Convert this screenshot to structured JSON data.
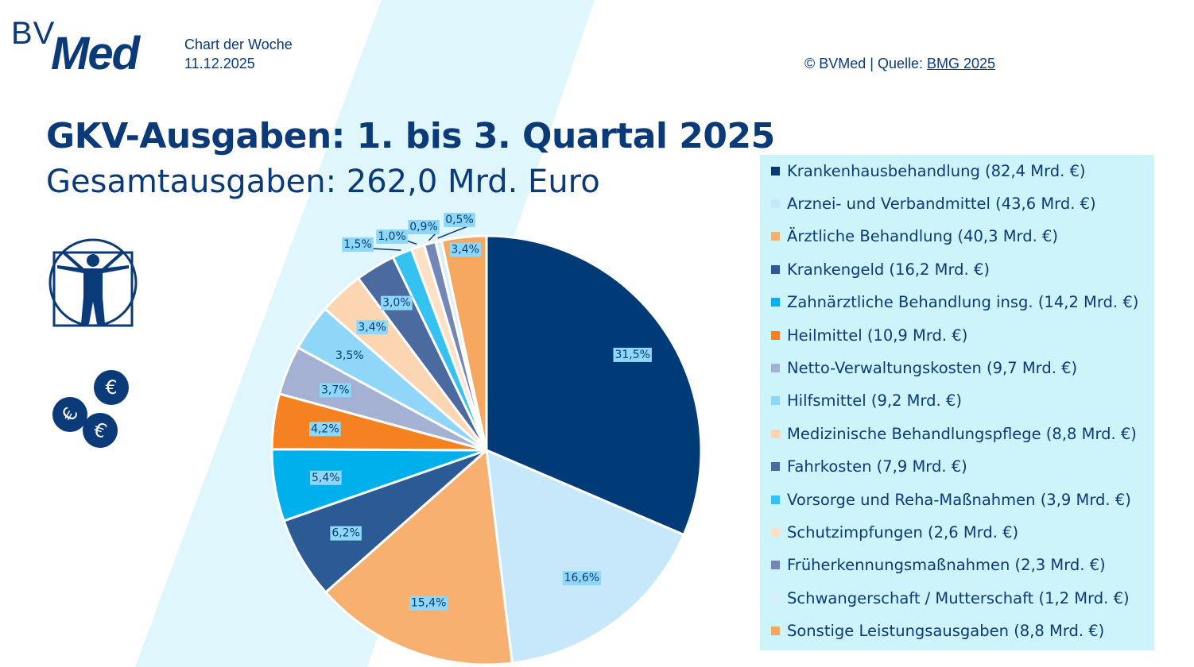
{
  "header": {
    "logo_text": "BVMed",
    "weekly_label": "Chart der Woche",
    "date": "11.12.2025",
    "copyright": "© BVMed | Quelle: ",
    "source_link": "BMG 2025"
  },
  "colors": {
    "navy": "#0b3a78",
    "stripe": "#dff6fc",
    "legend_bg": "#cdf3fb",
    "label_bg": "#8dd8f8"
  },
  "icons": [
    "vitruvian-man-icon",
    "euro-coins-icon"
  ],
  "chart_data": {
    "type": "pie",
    "title": "GKV-Ausgaben: 1. bis 3. Quartal 2025",
    "subtitle": "Gesamtausgaben: 262,0 Mrd. Euro",
    "start_angle_deg": 0,
    "direction": "clockwise",
    "legend_position": "right",
    "slices": [
      {
        "name": "Krankenhausbehandlung",
        "value": 82.4,
        "percent": 31.5,
        "label": "31,5%",
        "legend": "Krankenhausbehandlung (82,4 Mrd. €)",
        "color": "#003b78"
      },
      {
        "name": "Arznei- und Verbandmittel",
        "value": 43.6,
        "percent": 16.6,
        "label": "16,6%",
        "legend": "Arznei- und Verbandmittel  (43,6 Mrd. €)",
        "color": "#c7e8fa"
      },
      {
        "name": "Ärztliche Behandlung",
        "value": 40.3,
        "percent": 15.4,
        "label": "15,4%",
        "legend": "Ärztliche Behandlung  (40,3 Mrd. €)",
        "color": "#f8b070"
      },
      {
        "name": "Krankengeld",
        "value": 16.2,
        "percent": 6.2,
        "label": "6,2%",
        "legend": "Krankengeld  (16,2 Mrd. €)",
        "color": "#2c5a94"
      },
      {
        "name": "Zahnärztliche Behandlung insg.",
        "value": 14.2,
        "percent": 5.4,
        "label": "5,4%",
        "legend": "Zahnärztliche Behandlung insg.  (14,2 Mrd. €)",
        "color": "#00b0ec"
      },
      {
        "name": "Heilmittel",
        "value": 10.9,
        "percent": 4.2,
        "label": "4,2%",
        "legend": "Heilmittel (10,9 Mrd. €)",
        "color": "#f58120"
      },
      {
        "name": "Netto-Verwaltungskosten",
        "value": 9.7,
        "percent": 3.7,
        "label": "3,7%",
        "legend": "Netto-Verwaltungskosten (9,7 Mrd. €)",
        "color": "#a5b1d2"
      },
      {
        "name": "Hilfsmittel",
        "value": 9.2,
        "percent": 3.5,
        "label": "3,5%",
        "legend": "Hilfsmittel (9,2 Mrd. €)",
        "color": "#8fd6f8"
      },
      {
        "name": "Medizinische Behandlungspflege",
        "value": 8.8,
        "percent": 3.4,
        "label": "3,4%",
        "legend": "Medizinische Behandlungspflege (8,8 Mrd. €)",
        "color": "#fcd5b3"
      },
      {
        "name": "Fahrkosten",
        "value": 7.9,
        "percent": 3.0,
        "label": "3,0%",
        "legend": "Fahrkosten (7,9 Mrd. €)",
        "color": "#4a6aa0"
      },
      {
        "name": "Vorsorge und Reha-Maßnahmen",
        "value": 3.9,
        "percent": 1.5,
        "label": "1,5%",
        "legend": "Vorsorge und Reha-Maßnahmen (3,9 Mrd. €)",
        "color": "#36c2f0"
      },
      {
        "name": "Schutzimpfungen",
        "value": 2.6,
        "percent": 1.0,
        "label": "1,0%",
        "legend": "Schutzimpfungen (2,6 Mrd. €)",
        "color": "#fde0c6"
      },
      {
        "name": "Früherkennungsmaßnahmen",
        "value": 2.3,
        "percent": 0.9,
        "label": "0,9%",
        "legend": "Früherkennungsmaßnahmen (2,3 Mrd. €)",
        "color": "#7486b8"
      },
      {
        "name": "Schwangerschaft / Mutterschaft",
        "value": 1.2,
        "percent": 0.5,
        "label": "0,5%",
        "legend": "Schwangerschaft  / Mutterschaft (1,2 Mrd. €)",
        "color": "#d8eefa"
      },
      {
        "name": "Sonstige Leistungsausgaben",
        "value": 8.8,
        "percent": 3.4,
        "label": "3,4%",
        "legend": "Sonstige Leistungsausgaben (8,8 Mrd. €)",
        "color": "#f6a860"
      }
    ]
  }
}
